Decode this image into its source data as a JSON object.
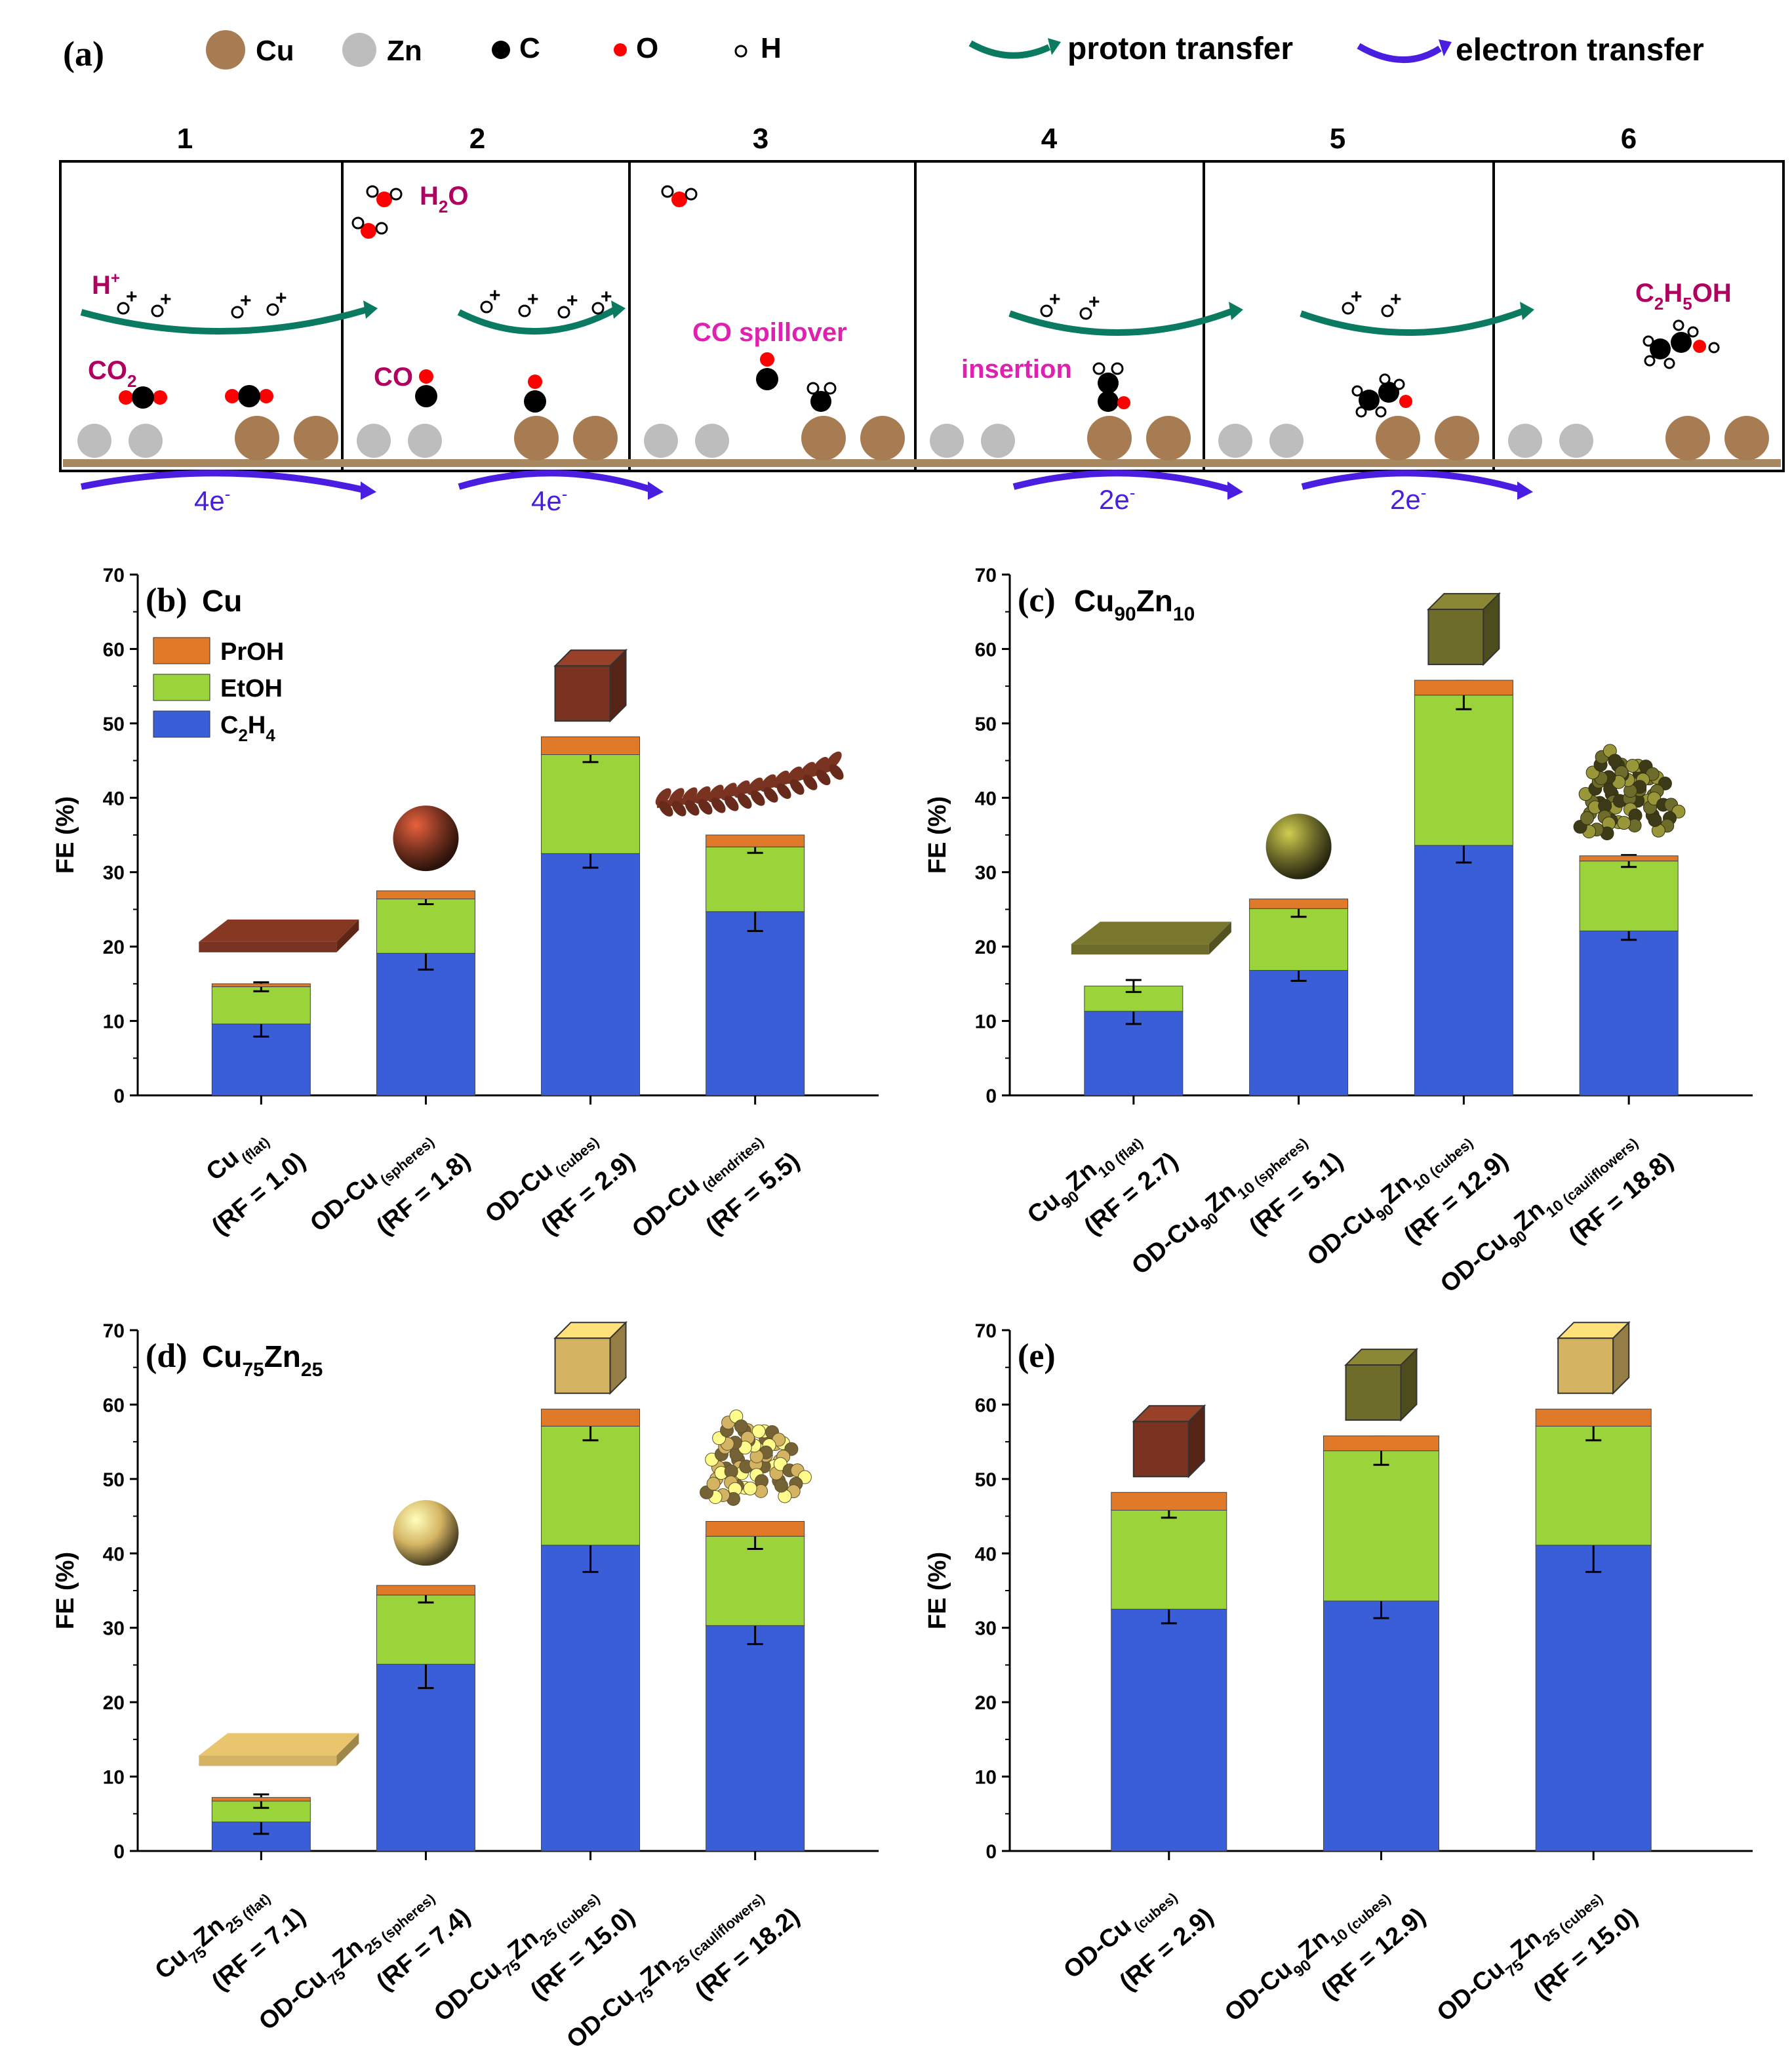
{
  "figure_caption": "",
  "scheme": {
    "label": "(a)",
    "legend": {
      "atoms": [
        {
          "name": "Cu",
          "color": "#a77c52"
        },
        {
          "name": "Zn",
          "color": "#bdbdbd"
        },
        {
          "name": "C",
          "color": "#000000"
        },
        {
          "name": "O",
          "color": "#ff0000"
        },
        {
          "name": "H",
          "color": "#ffffff"
        }
      ],
      "arrows": [
        {
          "name": "proton transfer",
          "color": "#0a7a60"
        },
        {
          "name": "electron transfer",
          "color": "#4a1ee0"
        }
      ]
    },
    "steps": [
      "1",
      "2",
      "3",
      "4",
      "5",
      "6"
    ],
    "annotations": {
      "h_plus": "H",
      "h_plus_sup": "+",
      "co2": "CO",
      "co2_sub": "2",
      "h2o_h": "H",
      "h2o_sub": "2",
      "h2o_o": "O",
      "co": "CO",
      "spillover": "CO spillover",
      "insertion": "insertion",
      "ethanol": [
        "C",
        "2",
        "H",
        "5",
        "OH"
      ],
      "electrons": [
        "4e",
        "4e",
        "2e",
        "2e"
      ],
      "electron_sup": "-"
    },
    "colors": {
      "proton": "#0a7a60",
      "electron": "#4a1ee0",
      "magenta": "#e020b0",
      "label_dark": "#b00060",
      "substrate": "#a78860"
    }
  },
  "chart_data": [
    {
      "panel": "(b)",
      "title_main": "Cu",
      "title_sub1": "",
      "title_mid": "",
      "title_sub2": "",
      "type": "bar",
      "stacked": true,
      "ylabel": "FE (%)",
      "ylim": [
        0,
        70
      ],
      "yticks": [
        "0",
        "10",
        "20",
        "30",
        "40",
        "50",
        "60",
        "70"
      ],
      "legend": [
        {
          "name": "PrOH",
          "color": "#e07a28"
        },
        {
          "name": "EtOH",
          "color": "#9ad43a"
        },
        {
          "name": "C2H4",
          "color": "#3a5ed8"
        }
      ],
      "categories": [
        {
          "line1_pre": "Cu",
          "line1_sub": "(flat)",
          "line2": "(RF = 1.0)"
        },
        {
          "line1_pre": "OD-Cu",
          "line1_sub": "(spheres)",
          "line2": "(RF = 1.8)"
        },
        {
          "line1_pre": "OD-Cu",
          "line1_sub": "(cubes)",
          "line2": "(RF = 2.9)"
        },
        {
          "line1_pre": "OD-Cu",
          "line1_sub": "(dendrites)",
          "line2": "(RF = 5.5)"
        }
      ],
      "series": [
        {
          "name": "C2H4",
          "values": [
            9.6,
            19.1,
            32.5,
            24.7
          ],
          "errors": [
            1.7,
            2.2,
            1.9,
            2.6
          ]
        },
        {
          "name": "EtOH",
          "values": [
            5.0,
            7.3,
            13.3,
            8.7
          ],
          "errors": [
            0.6,
            0.7,
            1.0,
            0.8
          ]
        },
        {
          "name": "PrOH",
          "values": [
            0.4,
            1.1,
            2.4,
            1.6
          ],
          "errors": [
            0,
            0,
            0,
            0
          ]
        }
      ],
      "morphology": [
        "flat",
        "sphere",
        "cube",
        "dendrite"
      ],
      "morph_color": "#7a3320"
    },
    {
      "panel": "(c)",
      "title_main": "Cu",
      "title_sub1": "90",
      "title_mid": "Zn",
      "title_sub2": "10",
      "type": "bar",
      "stacked": true,
      "ylabel": "FE (%)",
      "ylim": [
        0,
        70
      ],
      "yticks": [
        "0",
        "10",
        "20",
        "30",
        "40",
        "50",
        "60",
        "70"
      ],
      "categories": [
        {
          "line1_pre": "Cu",
          "s1": "90",
          "mid": "Zn",
          "s2": "10",
          "line1_sub": "(flat)",
          "line2": "(RF = 2.7)"
        },
        {
          "line1_pre": "OD-Cu",
          "s1": "90",
          "mid": "Zn",
          "s2": "10",
          "line1_sub": "(spheres)",
          "line2": "(RF = 5.1)"
        },
        {
          "line1_pre": "OD-Cu",
          "s1": "90",
          "mid": "Zn",
          "s2": "10",
          "line1_sub": "(cubes)",
          "line2": "(RF = 12.9)"
        },
        {
          "line1_pre": "OD-Cu",
          "s1": "90",
          "mid": "Zn",
          "s2": "10",
          "line1_sub": "(cauliflowers)",
          "line2": "(RF = 18.8)"
        }
      ],
      "series": [
        {
          "name": "C2H4",
          "values": [
            11.3,
            16.8,
            33.6,
            22.1
          ],
          "errors": [
            1.7,
            1.4,
            2.3,
            1.2
          ]
        },
        {
          "name": "EtOH",
          "values": [
            3.4,
            8.3,
            20.2,
            9.4
          ],
          "errors": [
            0.8,
            1.1,
            1.9,
            0.8
          ]
        },
        {
          "name": "PrOH",
          "values": [
            0.0,
            1.3,
            2.0,
            0.7
          ],
          "errors": [
            0,
            0,
            0,
            0
          ]
        }
      ],
      "morphology": [
        "flat",
        "sphere",
        "cube",
        "cauliflower"
      ],
      "morph_color": "#6e6c2a"
    },
    {
      "panel": "(d)",
      "title_main": "Cu",
      "title_sub1": "75",
      "title_mid": "Zn",
      "title_sub2": "25",
      "type": "bar",
      "stacked": true,
      "ylabel": "FE (%)",
      "ylim": [
        0,
        70
      ],
      "yticks": [
        "0",
        "10",
        "20",
        "30",
        "40",
        "50",
        "60",
        "70"
      ],
      "categories": [
        {
          "line1_pre": "Cu",
          "s1": "75",
          "mid": "Zn",
          "s2": "25",
          "line1_sub": "(flat)",
          "line2": "(RF = 7.1)"
        },
        {
          "line1_pre": "OD-Cu",
          "s1": "75",
          "mid": "Zn",
          "s2": "25",
          "line1_sub": "(spheres)",
          "line2": "(RF = 7.4)"
        },
        {
          "line1_pre": "OD-Cu",
          "s1": "75",
          "mid": "Zn",
          "s2": "25",
          "line1_sub": "(cubes)",
          "line2": "(RF = 15.0)"
        },
        {
          "line1_pre": "OD-Cu",
          "s1": "75",
          "mid": "Zn",
          "s2": "25",
          "line1_sub": "(cauliflowers)",
          "line2": "(RF = 18.2)"
        }
      ],
      "series": [
        {
          "name": "C2H4",
          "values": [
            3.9,
            25.1,
            41.1,
            30.3
          ],
          "errors": [
            1.6,
            3.2,
            3.6,
            2.5
          ]
        },
        {
          "name": "EtOH",
          "values": [
            2.8,
            9.3,
            16.0,
            12.0
          ],
          "errors": [
            0.9,
            1.0,
            1.9,
            1.7
          ]
        },
        {
          "name": "PrOH",
          "values": [
            0.5,
            1.3,
            2.3,
            2.0
          ],
          "errors": [
            0,
            0,
            0,
            0
          ]
        }
      ],
      "morphology": [
        "flat",
        "sphere",
        "cube",
        "cauliflower"
      ],
      "morph_color": "#d4b463"
    },
    {
      "panel": "(e)",
      "title_main": "",
      "title_sub1": "",
      "title_mid": "",
      "title_sub2": "",
      "type": "bar",
      "stacked": true,
      "ylabel": "FE (%)",
      "ylim": [
        0,
        70
      ],
      "yticks": [
        "0",
        "10",
        "20",
        "30",
        "40",
        "50",
        "60",
        "70"
      ],
      "categories": [
        {
          "line1_pre": "OD-Cu",
          "line1_sub": "(cubes)",
          "line2": "(RF = 2.9)"
        },
        {
          "line1_pre": "OD-Cu",
          "s1": "90",
          "mid": "Zn",
          "s2": "10",
          "line1_sub": "(cubes)",
          "line2": "(RF = 12.9)"
        },
        {
          "line1_pre": "OD-Cu",
          "s1": "75",
          "mid": "Zn",
          "s2": "25",
          "line1_sub": "(cubes)",
          "line2": "(RF = 15.0)"
        }
      ],
      "series": [
        {
          "name": "C2H4",
          "values": [
            32.5,
            33.6,
            41.1
          ],
          "errors": [
            1.9,
            2.3,
            3.6
          ]
        },
        {
          "name": "EtOH",
          "values": [
            13.3,
            20.2,
            16.0
          ],
          "errors": [
            1.0,
            1.9,
            1.9
          ]
        },
        {
          "name": "PrOH",
          "values": [
            2.4,
            2.0,
            2.3
          ],
          "errors": [
            0,
            0,
            0
          ]
        }
      ],
      "morphology": [
        "cube",
        "cube",
        "cube"
      ],
      "morph_colors": [
        "#7a3320",
        "#6e6c2a",
        "#d4b463"
      ]
    }
  ]
}
